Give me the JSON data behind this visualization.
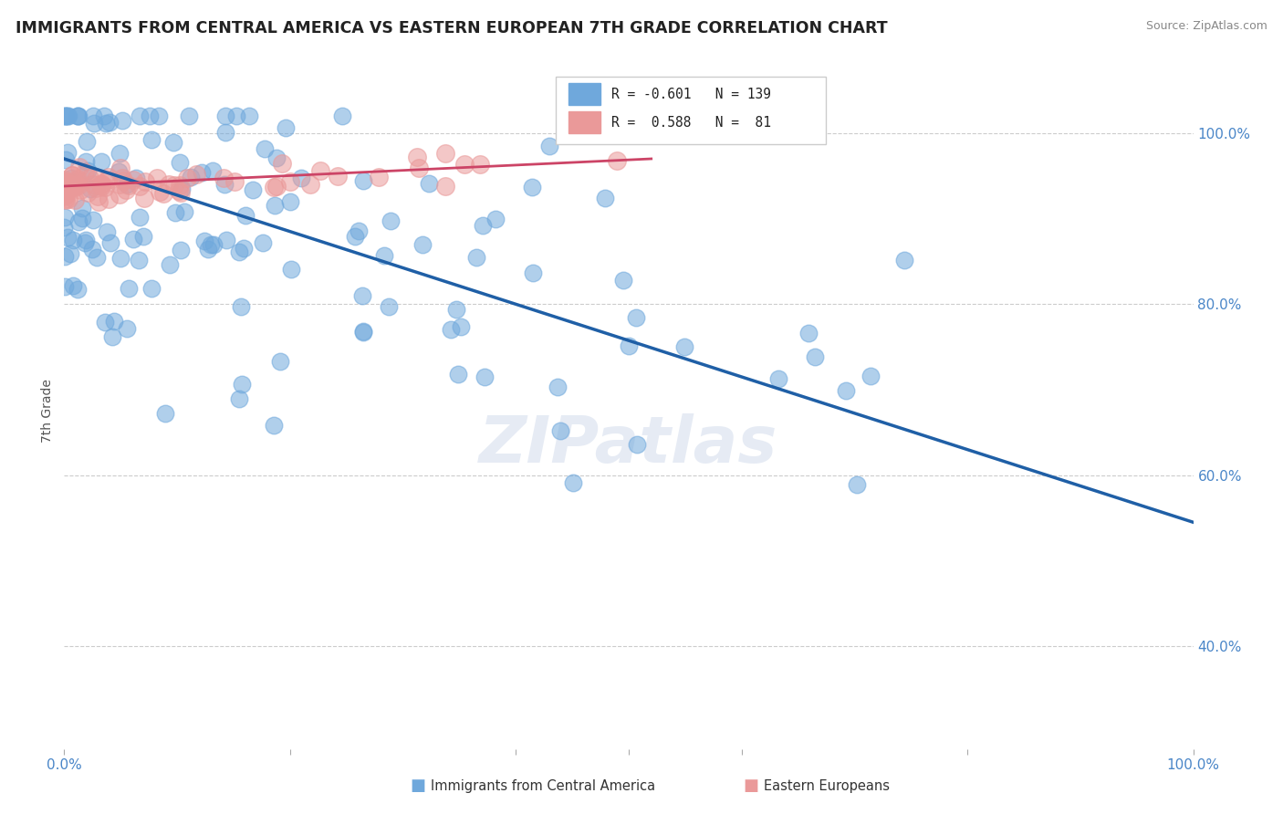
{
  "title": "IMMIGRANTS FROM CENTRAL AMERICA VS EASTERN EUROPEAN 7TH GRADE CORRELATION CHART",
  "source": "Source: ZipAtlas.com",
  "ylabel": "7th Grade",
  "color_blue": "#6fa8dc",
  "color_pink": "#ea9999",
  "color_line_blue": "#1f5fa6",
  "color_line_pink": "#cc4466",
  "watermark": "ZIPatlas",
  "blue_line_x": [
    0.0,
    1.0
  ],
  "blue_line_y": [
    0.97,
    0.545
  ],
  "pink_line_x": [
    0.0,
    0.52
  ],
  "pink_line_y": [
    0.938,
    0.97
  ],
  "r_blue": -0.601,
  "n_blue": 139,
  "r_pink": 0.588,
  "n_pink": 81,
  "seed_blue": 42,
  "seed_pink": 7,
  "ylim_low": 0.28,
  "ylim_high": 1.07,
  "xlim_low": 0.0,
  "xlim_high": 1.0
}
